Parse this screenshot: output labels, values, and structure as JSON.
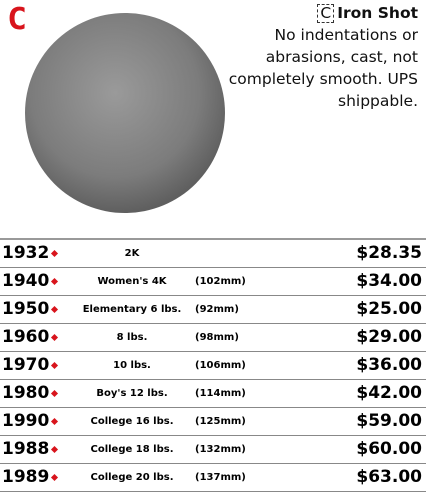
{
  "logo": "C",
  "header": {
    "badge": "C",
    "title": "Iron Shot",
    "description": "No indentations or abrasions, cast, not completely smooth. UPS shippable."
  },
  "table": {
    "rows": [
      {
        "item": "1932",
        "name": "2K",
        "price": "$28.35"
      },
      {
        "item": "1940",
        "name": "Women's 4K",
        "size": "(102mm)",
        "price": "$34.00"
      },
      {
        "item": "1950",
        "name": "Elementary 6 lbs.",
        "size": "(92mm)",
        "price": "$25.00"
      },
      {
        "item": "1960",
        "name": "8 lbs.",
        "size": "(98mm)",
        "price": "$29.00"
      },
      {
        "item": "1970",
        "name": "10 lbs.",
        "size": "(106mm)",
        "price": "$36.00"
      },
      {
        "item": "1980",
        "name": "Boy's 12 lbs.",
        "size": "(114mm)",
        "price": "$42.00"
      },
      {
        "item": "1990",
        "name": "College 16 lbs.",
        "size": "(125mm)",
        "price": "$59.00"
      },
      {
        "item": "1988",
        "name": "College 18 lbs.",
        "size": "(132mm)",
        "price": "$60.00"
      },
      {
        "item": "1989",
        "name": "College 20 lbs.",
        "size": "(137mm)",
        "price": "$63.00"
      }
    ]
  }
}
